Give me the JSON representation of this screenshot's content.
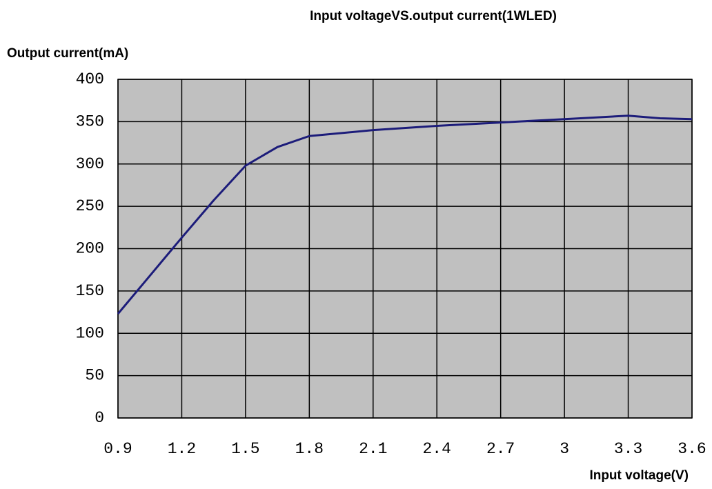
{
  "chart_data": {
    "type": "line",
    "title": "Input voltageVS.output current(1WLED)",
    "y_label": "Output current(mA)",
    "x_label": "Input voltage(V)",
    "x": [
      0.9,
      1.05,
      1.2,
      1.35,
      1.5,
      1.65,
      1.8,
      2.1,
      2.4,
      2.7,
      3.0,
      3.3,
      3.45,
      3.6
    ],
    "series": [
      {
        "name": "Output current",
        "color": "#1c1c7a",
        "values": [
          123,
          168,
          213,
          257,
          298,
          320,
          333,
          340,
          345,
          349,
          353,
          357,
          354,
          353
        ]
      }
    ],
    "xlim": [
      0.9,
      3.6
    ],
    "xticks": [
      0.9,
      1.2,
      1.5,
      1.8,
      2.1,
      2.4,
      2.7,
      3,
      3.3,
      3.6
    ],
    "ylim": [
      0,
      400
    ],
    "yticks": [
      0,
      50,
      100,
      150,
      200,
      250,
      300,
      350,
      400
    ],
    "grid": true,
    "plot_background": "#c0c0c0"
  }
}
